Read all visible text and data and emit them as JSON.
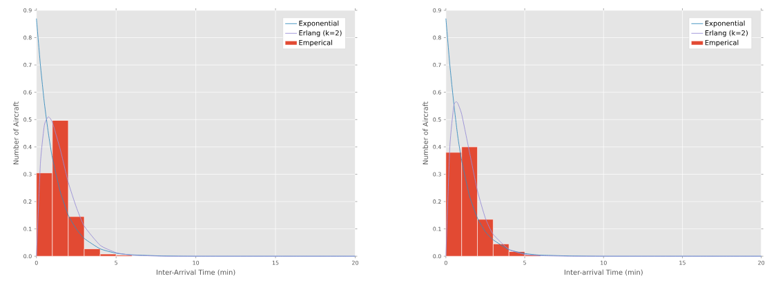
{
  "chart_data": [
    {
      "type": "histogram",
      "xlabel": "Inter-Arrival Time (min)",
      "ylabel": "Number of Aircraft",
      "xlim": [
        0,
        20
      ],
      "ylim": [
        0,
        0.9
      ],
      "xticks": [
        0,
        5,
        10,
        15,
        20
      ],
      "yticks": [
        {
          "value": 0,
          "label": "0.0"
        },
        0.1,
        0.2,
        0.3,
        0.4,
        0.5,
        0.6,
        0.7,
        0.8,
        0.9
      ],
      "grid": true,
      "legend": "top right",
      "series": [
        {
          "type": "line",
          "name": "Exponential",
          "color": "#348abd",
          "x": [
            0,
            0.25,
            0.5,
            0.75,
            1,
            1.5,
            2,
            2.5,
            3,
            4,
            5,
            6,
            8,
            10,
            15,
            20
          ],
          "values": [
            0.87,
            0.7,
            0.56,
            0.45,
            0.36,
            0.235,
            0.15,
            0.1,
            0.065,
            0.027,
            0.011,
            0.005,
            0.001,
            0,
            0,
            0
          ]
        },
        {
          "type": "line",
          "name": "Erlang (k=2)",
          "color": "#988ed5",
          "x": [
            0,
            0.25,
            0.5,
            0.75,
            1,
            1.5,
            2,
            2.5,
            3,
            4,
            5,
            6,
            8,
            10,
            15,
            20
          ],
          "values": [
            0,
            0.34,
            0.48,
            0.51,
            0.49,
            0.39,
            0.27,
            0.18,
            0.11,
            0.04,
            0.013,
            0.004,
            0,
            0,
            0,
            0
          ]
        },
        {
          "name": "Emperical",
          "color": "#e24a33",
          "bins": [
            0,
            1,
            2,
            3,
            4,
            5,
            6
          ],
          "values": [
            0.305,
            0.497,
            0.145,
            0.027,
            0.008,
            0.004
          ]
        }
      ]
    },
    {
      "type": "histogram",
      "xlabel": "Inter-arrival Time (min)",
      "ylabel": "Number of Aircraft",
      "xlim": [
        0,
        20
      ],
      "ylim": [
        0,
        0.9
      ],
      "xticks": [
        0,
        5,
        10,
        15,
        20
      ],
      "yticks": [
        {
          "value": 0,
          "label": "0.0"
        },
        0.1,
        0.2,
        0.3,
        0.4,
        0.5,
        0.6,
        0.7,
        0.8,
        0.9
      ],
      "grid": true,
      "legend": "top right",
      "series": [
        {
          "type": "line",
          "name": "Exponential",
          "color": "#348abd",
          "x": [
            0,
            0.25,
            0.5,
            0.75,
            1,
            1.5,
            2,
            2.5,
            3,
            4,
            5,
            6,
            8,
            10,
            15,
            20
          ],
          "values": [
            0.87,
            0.7,
            0.56,
            0.44,
            0.35,
            0.22,
            0.14,
            0.09,
            0.06,
            0.024,
            0.01,
            0.004,
            0.001,
            0,
            0,
            0
          ]
        },
        {
          "type": "line",
          "name": "Erlang (k=2)",
          "color": "#988ed5",
          "x": [
            0,
            0.25,
            0.5,
            0.65,
            0.75,
            1,
            1.5,
            2,
            2.5,
            3,
            4,
            5,
            6,
            8,
            10,
            15,
            20
          ],
          "values": [
            0,
            0.4,
            0.55,
            0.565,
            0.56,
            0.52,
            0.38,
            0.24,
            0.14,
            0.08,
            0.025,
            0.007,
            0.002,
            0,
            0,
            0,
            0
          ]
        },
        {
          "name": "Emperical",
          "color": "#e24a33",
          "bins": [
            0,
            1,
            2,
            3,
            4,
            5,
            6
          ],
          "values": [
            0.38,
            0.4,
            0.135,
            0.045,
            0.017,
            0.005
          ]
        }
      ]
    }
  ]
}
